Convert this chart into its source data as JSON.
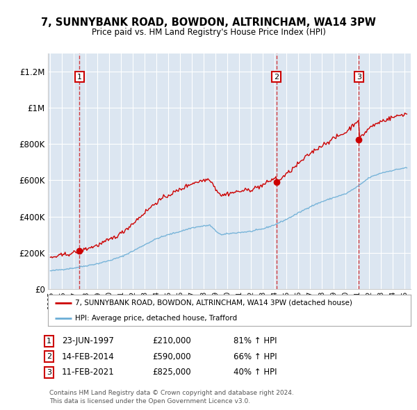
{
  "title": "7, SUNNYBANK ROAD, BOWDON, ALTRINCHAM, WA14 3PW",
  "subtitle": "Price paid vs. HM Land Registry's House Price Index (HPI)",
  "plot_bg_color": "#dce6f1",
  "sale_prices": [
    210000,
    590000,
    825000
  ],
  "sale_labels": [
    "1",
    "2",
    "3"
  ],
  "sale_hpi_pct": [
    "81% ↑ HPI",
    "66% ↑ HPI",
    "40% ↑ HPI"
  ],
  "sale_date_labels": [
    "23-JUN-1997",
    "14-FEB-2014",
    "11-FEB-2021"
  ],
  "sale_price_labels": [
    "£210,000",
    "£590,000",
    "£825,000"
  ],
  "legend_red_label": "7, SUNNYBANK ROAD, BOWDON, ALTRINCHAM, WA14 3PW (detached house)",
  "legend_blue_label": "HPI: Average price, detached house, Trafford",
  "footer1": "Contains HM Land Registry data © Crown copyright and database right 2024.",
  "footer2": "This data is licensed under the Open Government Licence v3.0.",
  "ylim_max": 1300000,
  "xlim_min": 1994.8,
  "xlim_max": 2025.5,
  "red_color": "#cc0000",
  "blue_color": "#6baed6",
  "sale_years_decimal": [
    1997.47,
    2014.12,
    2021.11
  ]
}
